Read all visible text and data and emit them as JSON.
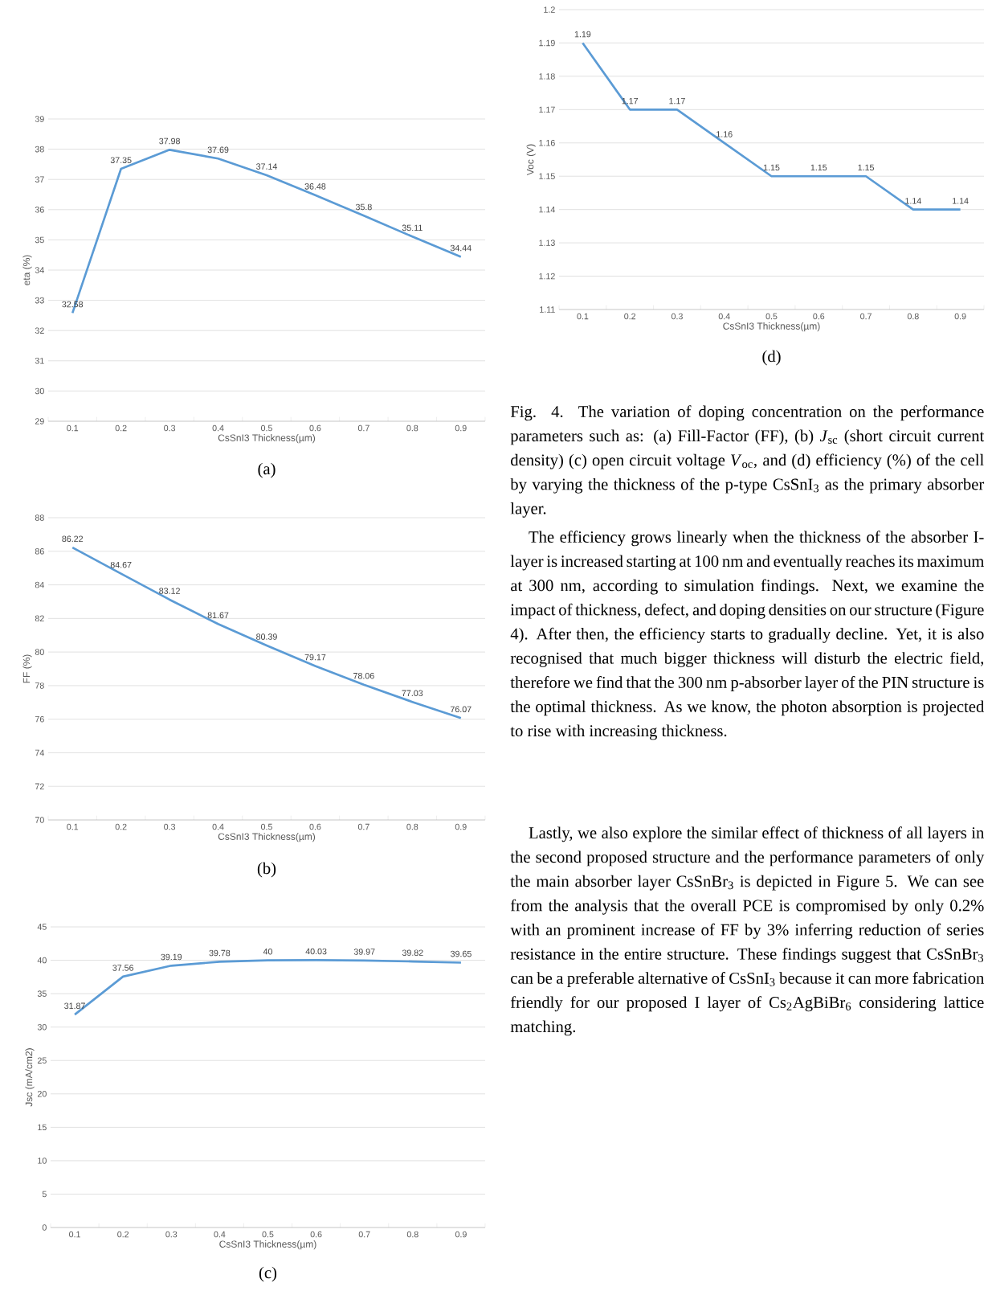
{
  "chart_data": [
    {
      "type": "line",
      "xlabel": "CsSnI3 Thickness(µm)",
      "ylabel": "eta (%)",
      "categories": [
        "0.1",
        "0.2",
        "0.3",
        "0.4",
        "0.5",
        "0.6",
        "0.7",
        "0.8",
        "0.9"
      ],
      "values": [
        32.58,
        37.35,
        37.98,
        37.69,
        37.14,
        36.48,
        35.8,
        35.11,
        34.44
      ],
      "color": "#5b9bd5",
      "ylim": [
        29,
        39
      ],
      "yticks": [
        29,
        30,
        31,
        32,
        33,
        34,
        35,
        36,
        37,
        38,
        39
      ],
      "grid": "y",
      "data_labels": true,
      "annotations": [
        "(a)"
      ]
    },
    {
      "type": "line",
      "xlabel": "CsSnI3 Thickness(µm)",
      "ylabel": "FF (%)",
      "categories": [
        "0.1",
        "0.2",
        "0.3",
        "0.4",
        "0.5",
        "0.6",
        "0.7",
        "0.8",
        "0.9"
      ],
      "values": [
        86.22,
        84.67,
        83.12,
        81.67,
        80.39,
        79.17,
        78.06,
        77.03,
        76.07
      ],
      "color": "#5b9bd5",
      "ylim": [
        70,
        88
      ],
      "yticks": [
        70,
        72,
        74,
        76,
        78,
        80,
        82,
        84,
        86,
        88
      ],
      "grid": "y",
      "data_labels": true,
      "annotations": [
        "(b)"
      ]
    },
    {
      "type": "line",
      "xlabel": "CsSnI3 Thickness(µm)",
      "ylabel": "Jsc (mA/cm2)",
      "categories": [
        "0.1",
        "0.2",
        "0.3",
        "0.4",
        "0.5",
        "0.6",
        "0.7",
        "0.8",
        "0.9"
      ],
      "values": [
        31.87,
        37.56,
        39.19,
        39.78,
        40,
        40.03,
        39.97,
        39.82,
        39.65
      ],
      "color": "#5b9bd5",
      "ylim": [
        0,
        45
      ],
      "yticks": [
        0,
        5,
        10,
        15,
        20,
        25,
        30,
        35,
        40,
        45
      ],
      "grid": "y",
      "data_labels": true,
      "annotations": [
        "(c)"
      ]
    },
    {
      "type": "line",
      "xlabel": "CsSnI3 Thickness(µm)",
      "ylabel": "Voc (V)",
      "categories": [
        "0.1",
        "0.2",
        "0.3",
        "0.4",
        "0.5",
        "0.6",
        "0.7",
        "0.8",
        "0.9"
      ],
      "values": [
        1.19,
        1.17,
        1.17,
        1.16,
        1.15,
        1.15,
        1.15,
        1.14,
        1.14
      ],
      "color": "#5b9bd5",
      "ylim": [
        1.11,
        1.2
      ],
      "yticks": [
        1.11,
        1.12,
        1.13,
        1.14,
        1.15,
        1.16,
        1.17,
        1.18,
        1.19,
        1.2
      ],
      "grid": "y",
      "data_labels": true,
      "annotations": [
        "(d)"
      ]
    },
    {
      "type": "other",
      "annotations": [
        "Fig. 4.   The variation of doping concentration on the performance parameters such as: (a) Fill-Factor (FF), (b) *J*$_{sc}$ (short circuit current density) (c) open circuit voltage *V*$_{oc}$, and (d) efficiency (%) of the cell by varying the thickness of the p-type CsSnI$_{3}$ as the primary absorber layer.",
        "The efficiency grows linearly when the thickness of the absorber I-layer is increased starting at 100 nm and eventually reaches its maximum at 300 nm, according to simulation findings. Next, we examine the impact of thickness, defect, and doping densities on our structure (Figure 4). After then, the efficiency starts to gradually decline. Yet, it is also recognised that much bigger thickness will disturb the electric field, therefore we find that the 300 nm p-absorber layer of the PIN structure is the optimal thickness. As we know, the photon absorption is projected to rise with increasing thickness.",
        "Lastly, we also explore the similar effect of thickness of all layers in the second proposed structure and the performance parameters of only the main absorber layer CsSnBr$_{3}$ is depicted in Figure 5. We can see from the analysis that the overall PCE is compromised by only 0.2% with an prominent increase of FF by 3% inferring reduction of series resistance in the entire structure. These findings suggest that CsSnBr$_{3}$ can be a preferable alternative of CsSnI$_{3}$ because it can more fabrication friendly for our proposed I layer of Cs$_{2}$AgBiBr$_{6}$ considering lattice matching."
      ]
    }
  ]
}
